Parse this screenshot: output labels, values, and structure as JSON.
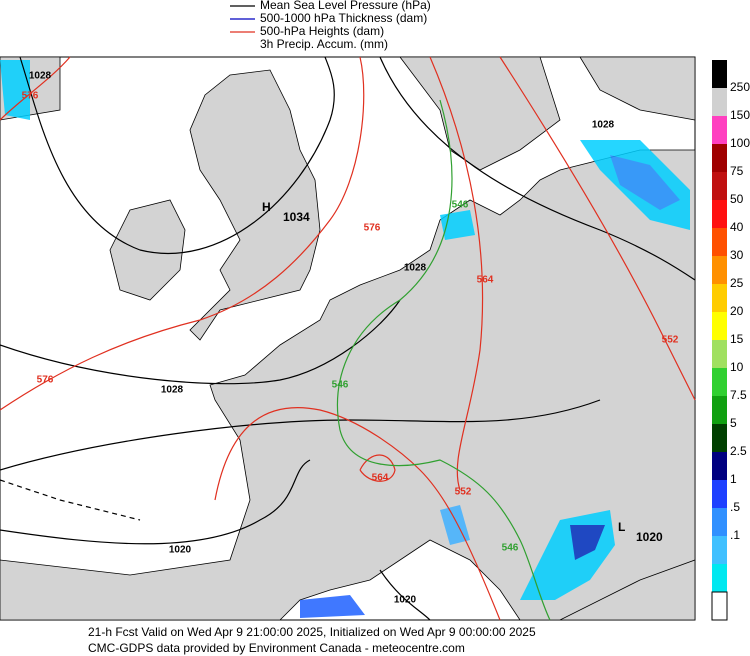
{
  "legend": [
    "Mean Sea Level Pressure (hPa)",
    "500-1000 hPa Thickness (dam)",
    "500-hPa Heights (dam)",
    "3h Precip. Accum. (mm)"
  ],
  "colorbar": {
    "labels": [
      "250",
      "150",
      "100",
      "75",
      "50",
      "40",
      "30",
      "25",
      "20",
      "15",
      "10",
      "7.5",
      "5",
      "2.5",
      "1",
      ".5",
      ".1"
    ]
  },
  "contour_labels": {
    "pressure": [
      "1028",
      "1028",
      "1028",
      "1020",
      "1020",
      "1028"
    ],
    "heights": [
      "576",
      "576",
      "576",
      "564",
      "564",
      "552",
      "552"
    ],
    "thickness": [
      "546",
      "546",
      "546"
    ]
  },
  "centers": {
    "high": {
      "letter": "H",
      "value": "1034"
    },
    "low": {
      "letter": "L",
      "value": "1020"
    }
  },
  "footer": [
    "21-h Fcst Valid on Wed Apr  9 21:00:00 2025, Initialized on Wed Apr  9 00:00:00 2025",
    "CMC-GDPS data provided by Environment Canada - meteocentre.com"
  ]
}
